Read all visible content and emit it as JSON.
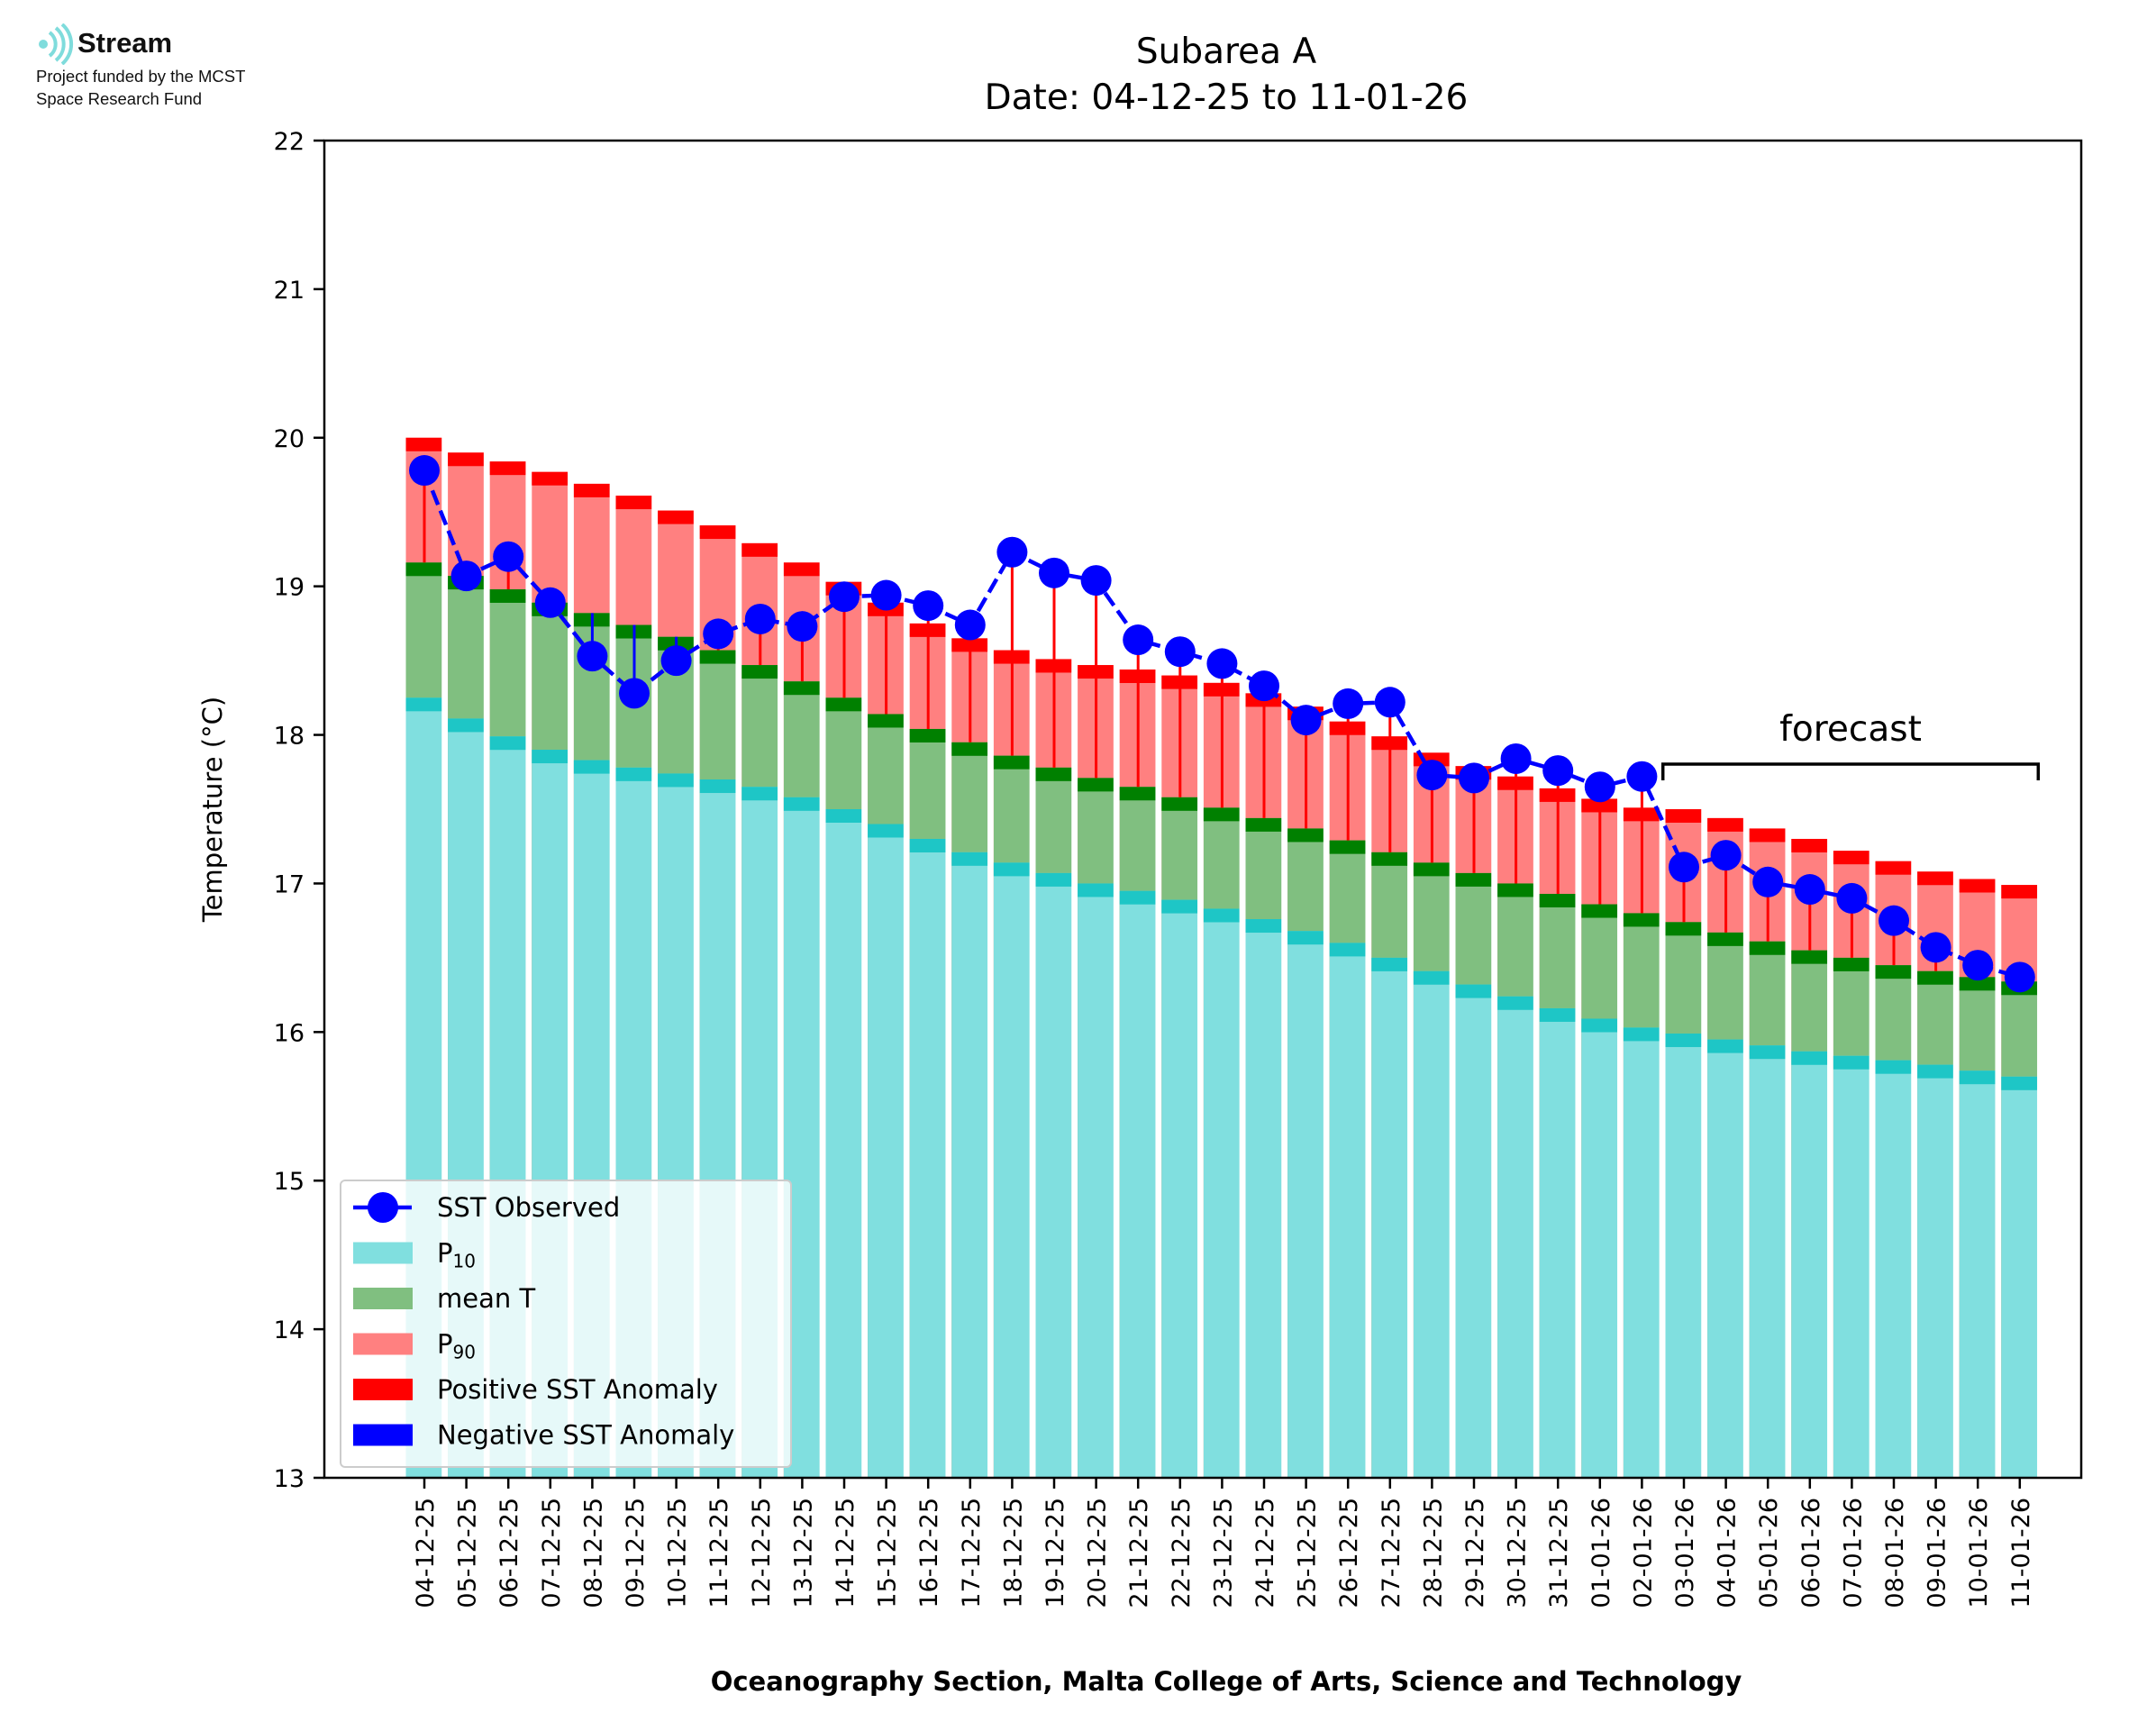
{
  "logo": {
    "name": "Stream",
    "line1": "Project funded by the MCST",
    "line2": "Space Research Fund",
    "icon": "stream-wave-icon",
    "color": "#7fdcdc"
  },
  "colors": {
    "p10": "#80dfdf",
    "p10_cap": "#1ec6c6",
    "mean": "#80bf80",
    "mean_cap": "#008000",
    "p90": "#ff8080",
    "p90_cap": "#ff0000",
    "observed": "#0000ff",
    "positive_anomaly": "#ff0000",
    "negative_anomaly": "#0000ff"
  },
  "chart_data": {
    "type": "bar",
    "title": "Subarea A",
    "subtitle": "Date: 04-12-25 to 11-01-26",
    "xlabel": "Oceanography Section, Malta College of Arts, Science and Technology",
    "ylabel": "Temperature (°C)",
    "ylim": [
      13,
      22
    ],
    "yticks": [
      13,
      14,
      15,
      16,
      17,
      18,
      19,
      20,
      21,
      22
    ],
    "grid": false,
    "legend_position": "lower-left",
    "annotation": "forecast",
    "forecast_range": [
      "03-01-26",
      "11-01-26"
    ],
    "categories": [
      "04-12-25",
      "05-12-25",
      "06-12-25",
      "07-12-25",
      "08-12-25",
      "09-12-25",
      "10-12-25",
      "11-12-25",
      "12-12-25",
      "13-12-25",
      "14-12-25",
      "15-12-25",
      "16-12-25",
      "17-12-25",
      "18-12-25",
      "19-12-25",
      "20-12-25",
      "21-12-25",
      "22-12-25",
      "23-12-25",
      "24-12-25",
      "25-12-25",
      "26-12-25",
      "27-12-25",
      "28-12-25",
      "29-12-25",
      "30-12-25",
      "31-12-25",
      "01-01-26",
      "02-01-26",
      "03-01-26",
      "04-01-26",
      "05-01-26",
      "06-01-26",
      "07-01-26",
      "08-01-26",
      "09-01-26",
      "10-01-26",
      "11-01-26"
    ],
    "series": [
      {
        "name": "SST Observed",
        "marker": "circle",
        "line": "dashed",
        "values": [
          19.78,
          19.07,
          19.2,
          18.89,
          18.53,
          18.28,
          18.5,
          18.68,
          18.78,
          18.73,
          18.93,
          18.94,
          18.87,
          18.74,
          19.23,
          19.09,
          19.04,
          18.64,
          18.56,
          18.48,
          18.33,
          18.1,
          18.21,
          18.22,
          17.73,
          17.71,
          17.84,
          17.76,
          17.65,
          17.72,
          17.11,
          17.19,
          17.01,
          16.96,
          16.9,
          16.75,
          16.57,
          16.45,
          16.37
        ]
      },
      {
        "name": "P10",
        "values": [
          18.25,
          18.11,
          17.99,
          17.9,
          17.83,
          17.78,
          17.74,
          17.7,
          17.65,
          17.58,
          17.5,
          17.4,
          17.3,
          17.21,
          17.14,
          17.07,
          17.0,
          16.95,
          16.89,
          16.83,
          16.76,
          16.68,
          16.6,
          16.5,
          16.41,
          16.32,
          16.24,
          16.16,
          16.09,
          16.03,
          15.99,
          15.95,
          15.91,
          15.87,
          15.84,
          15.81,
          15.78,
          15.74,
          15.7
        ]
      },
      {
        "name": "mean T",
        "values": [
          19.16,
          19.07,
          18.98,
          18.89,
          18.82,
          18.74,
          18.66,
          18.57,
          18.47,
          18.36,
          18.25,
          18.14,
          18.04,
          17.95,
          17.86,
          17.78,
          17.71,
          17.65,
          17.58,
          17.51,
          17.44,
          17.37,
          17.29,
          17.21,
          17.14,
          17.07,
          17.0,
          16.93,
          16.86,
          16.8,
          16.74,
          16.67,
          16.61,
          16.55,
          16.5,
          16.45,
          16.41,
          16.37,
          16.34
        ]
      },
      {
        "name": "P90",
        "values": [
          20.0,
          19.9,
          19.84,
          19.77,
          19.69,
          19.61,
          19.51,
          19.41,
          19.29,
          19.16,
          19.03,
          18.89,
          18.75,
          18.65,
          18.57,
          18.51,
          18.47,
          18.44,
          18.4,
          18.35,
          18.28,
          18.19,
          18.09,
          17.99,
          17.88,
          17.79,
          17.72,
          17.64,
          17.57,
          17.51,
          17.5,
          17.44,
          17.37,
          17.3,
          17.22,
          17.15,
          17.08,
          17.03,
          16.99
        ]
      }
    ],
    "legend": [
      {
        "label": "SST Observed",
        "kind": "line-marker"
      },
      {
        "label": "P",
        "sub": "10",
        "kind": "patch-p10"
      },
      {
        "label": "mean T",
        "kind": "patch-mean"
      },
      {
        "label": "P",
        "sub": "90",
        "kind": "patch-p90"
      },
      {
        "label": "Positive SST Anomaly",
        "kind": "patch-pos"
      },
      {
        "label": "Negative SST Anomaly",
        "kind": "patch-neg"
      }
    ]
  }
}
